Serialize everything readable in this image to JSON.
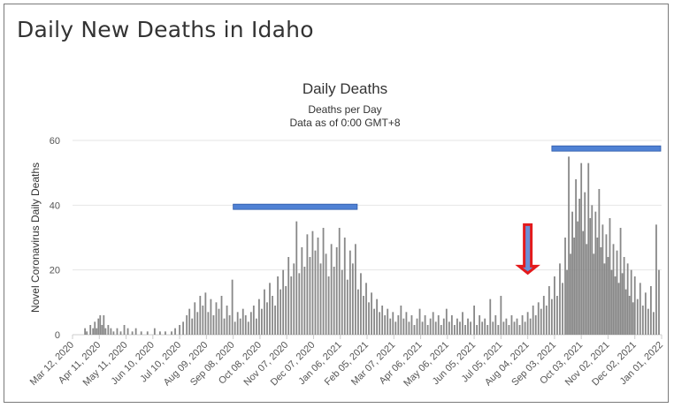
{
  "page": {
    "title": "Daily New Deaths in Idaho"
  },
  "chart_data": {
    "type": "bar",
    "title": "Daily Deaths",
    "subtitle_lines": [
      "Deaths per Day",
      "Data as of 0:00 GMT+8"
    ],
    "xlabel": "",
    "ylabel": "Novel Coronavirus Daily Deaths",
    "ylim": [
      0,
      60
    ],
    "yticks": [
      0,
      20,
      40,
      60
    ],
    "x_start": "2020-03-12",
    "x_end": "2022-01-01",
    "xtick_labels": [
      "Mar 12, 2020",
      "Apr 11, 2020",
      "May 11, 2020",
      "Jun 10, 2020",
      "Jul 10, 2020",
      "Aug 09, 2020",
      "Sep 08, 2020",
      "Oct 08, 2020",
      "Nov 07, 2020",
      "Dec 07, 2020",
      "Jan 06, 2021",
      "Feb 05, 2021",
      "Mar 07, 2021",
      "Apr 06, 2021",
      "May 06, 2021",
      "Jun 05, 2021",
      "Jul 05, 2021",
      "Aug 04, 2021",
      "Sep 03, 2021",
      "Oct 03, 2021",
      "Nov 02, 2021",
      "Dec 02, 2021",
      "Jan 01, 2022"
    ],
    "grid": true,
    "bar_color": "#888888",
    "series": [
      {
        "points": [
          [
            "2020-03-26",
            2
          ],
          [
            "2020-03-28",
            1
          ],
          [
            "2020-04-01",
            3
          ],
          [
            "2020-04-04",
            2
          ],
          [
            "2020-04-06",
            4
          ],
          [
            "2020-04-08",
            2
          ],
          [
            "2020-04-10",
            5
          ],
          [
            "2020-04-12",
            6
          ],
          [
            "2020-04-14",
            3
          ],
          [
            "2020-04-16",
            6
          ],
          [
            "2020-04-18",
            2
          ],
          [
            "2020-04-21",
            3
          ],
          [
            "2020-04-24",
            2
          ],
          [
            "2020-04-27",
            1
          ],
          [
            "2020-05-01",
            2
          ],
          [
            "2020-05-05",
            1
          ],
          [
            "2020-05-09",
            3
          ],
          [
            "2020-05-13",
            2
          ],
          [
            "2020-05-18",
            1
          ],
          [
            "2020-05-22",
            2
          ],
          [
            "2020-05-28",
            1
          ],
          [
            "2020-06-04",
            1
          ],
          [
            "2020-06-12",
            2
          ],
          [
            "2020-06-18",
            1
          ],
          [
            "2020-06-24",
            1
          ],
          [
            "2020-07-01",
            1
          ],
          [
            "2020-07-05",
            2
          ],
          [
            "2020-07-10",
            3
          ],
          [
            "2020-07-14",
            4
          ],
          [
            "2020-07-18",
            6
          ],
          [
            "2020-07-21",
            8
          ],
          [
            "2020-07-24",
            5
          ],
          [
            "2020-07-27",
            10
          ],
          [
            "2020-07-30",
            7
          ],
          [
            "2020-08-02",
            12
          ],
          [
            "2020-08-05",
            9
          ],
          [
            "2020-08-08",
            13
          ],
          [
            "2020-08-11",
            7
          ],
          [
            "2020-08-14",
            11
          ],
          [
            "2020-08-17",
            6
          ],
          [
            "2020-08-20",
            10
          ],
          [
            "2020-08-23",
            8
          ],
          [
            "2020-08-26",
            12
          ],
          [
            "2020-08-29",
            5
          ],
          [
            "2020-09-01",
            9
          ],
          [
            "2020-09-04",
            6
          ],
          [
            "2020-09-07",
            17
          ],
          [
            "2020-09-10",
            4
          ],
          [
            "2020-09-13",
            7
          ],
          [
            "2020-09-16",
            5
          ],
          [
            "2020-09-19",
            8
          ],
          [
            "2020-09-22",
            6
          ],
          [
            "2020-09-25",
            4
          ],
          [
            "2020-09-28",
            7
          ],
          [
            "2020-10-01",
            9
          ],
          [
            "2020-10-04",
            5
          ],
          [
            "2020-10-07",
            11
          ],
          [
            "2020-10-10",
            8
          ],
          [
            "2020-10-13",
            14
          ],
          [
            "2020-10-16",
            10
          ],
          [
            "2020-10-19",
            16
          ],
          [
            "2020-10-22",
            12
          ],
          [
            "2020-10-25",
            9
          ],
          [
            "2020-10-28",
            18
          ],
          [
            "2020-10-31",
            14
          ],
          [
            "2020-11-03",
            20
          ],
          [
            "2020-11-06",
            15
          ],
          [
            "2020-11-09",
            24
          ],
          [
            "2020-11-12",
            18
          ],
          [
            "2020-11-15",
            22
          ],
          [
            "2020-11-18",
            35
          ],
          [
            "2020-11-21",
            19
          ],
          [
            "2020-11-24",
            27
          ],
          [
            "2020-11-27",
            21
          ],
          [
            "2020-11-30",
            31
          ],
          [
            "2020-12-03",
            24
          ],
          [
            "2020-12-06",
            32
          ],
          [
            "2020-12-09",
            26
          ],
          [
            "2020-12-12",
            30
          ],
          [
            "2020-12-15",
            22
          ],
          [
            "2020-12-18",
            33
          ],
          [
            "2020-12-21",
            25
          ],
          [
            "2020-12-24",
            18
          ],
          [
            "2020-12-27",
            28
          ],
          [
            "2020-12-30",
            21
          ],
          [
            "2021-01-02",
            27
          ],
          [
            "2021-01-05",
            33
          ],
          [
            "2021-01-08",
            20
          ],
          [
            "2021-01-11",
            30
          ],
          [
            "2021-01-14",
            17
          ],
          [
            "2021-01-17",
            26
          ],
          [
            "2021-01-20",
            22
          ],
          [
            "2021-01-23",
            28
          ],
          [
            "2021-01-26",
            14
          ],
          [
            "2021-01-29",
            19
          ],
          [
            "2021-02-01",
            12
          ],
          [
            "2021-02-04",
            16
          ],
          [
            "2021-02-07",
            10
          ],
          [
            "2021-02-10",
            13
          ],
          [
            "2021-02-13",
            8
          ],
          [
            "2021-02-16",
            11
          ],
          [
            "2021-02-19",
            7
          ],
          [
            "2021-02-22",
            9
          ],
          [
            "2021-02-25",
            6
          ],
          [
            "2021-02-28",
            8
          ],
          [
            "2021-03-03",
            5
          ],
          [
            "2021-03-06",
            7
          ],
          [
            "2021-03-09",
            4
          ],
          [
            "2021-03-12",
            6
          ],
          [
            "2021-03-15",
            9
          ],
          [
            "2021-03-18",
            5
          ],
          [
            "2021-03-21",
            7
          ],
          [
            "2021-03-24",
            4
          ],
          [
            "2021-03-27",
            6
          ],
          [
            "2021-03-30",
            3
          ],
          [
            "2021-04-02",
            5
          ],
          [
            "2021-04-05",
            8
          ],
          [
            "2021-04-08",
            4
          ],
          [
            "2021-04-11",
            6
          ],
          [
            "2021-04-14",
            3
          ],
          [
            "2021-04-17",
            5
          ],
          [
            "2021-04-20",
            7
          ],
          [
            "2021-04-23",
            4
          ],
          [
            "2021-04-26",
            6
          ],
          [
            "2021-04-29",
            3
          ],
          [
            "2021-05-02",
            5
          ],
          [
            "2021-05-05",
            8
          ],
          [
            "2021-05-08",
            4
          ],
          [
            "2021-05-11",
            6
          ],
          [
            "2021-05-14",
            3
          ],
          [
            "2021-05-17",
            5
          ],
          [
            "2021-05-20",
            4
          ],
          [
            "2021-05-23",
            7
          ],
          [
            "2021-05-26",
            3
          ],
          [
            "2021-05-29",
            5
          ],
          [
            "2021-06-01",
            4
          ],
          [
            "2021-06-05",
            9
          ],
          [
            "2021-06-08",
            3
          ],
          [
            "2021-06-11",
            6
          ],
          [
            "2021-06-14",
            4
          ],
          [
            "2021-06-17",
            5
          ],
          [
            "2021-06-20",
            3
          ],
          [
            "2021-06-23",
            11
          ],
          [
            "2021-06-26",
            4
          ],
          [
            "2021-06-29",
            6
          ],
          [
            "2021-07-02",
            3
          ],
          [
            "2021-07-05",
            12
          ],
          [
            "2021-07-08",
            4
          ],
          [
            "2021-07-11",
            5
          ],
          [
            "2021-07-14",
            3
          ],
          [
            "2021-07-17",
            6
          ],
          [
            "2021-07-20",
            4
          ],
          [
            "2021-07-23",
            5
          ],
          [
            "2021-07-26",
            3
          ],
          [
            "2021-07-29",
            6
          ],
          [
            "2021-08-01",
            4
          ],
          [
            "2021-08-04",
            7
          ],
          [
            "2021-08-07",
            5
          ],
          [
            "2021-08-10",
            9
          ],
          [
            "2021-08-13",
            6
          ],
          [
            "2021-08-16",
            10
          ],
          [
            "2021-08-19",
            8
          ],
          [
            "2021-08-22",
            12
          ],
          [
            "2021-08-25",
            9
          ],
          [
            "2021-08-28",
            15
          ],
          [
            "2021-08-31",
            11
          ],
          [
            "2021-09-03",
            18
          ],
          [
            "2021-09-06",
            12
          ],
          [
            "2021-09-09",
            22
          ],
          [
            "2021-09-12",
            16
          ],
          [
            "2021-09-15",
            30
          ],
          [
            "2021-09-17",
            20
          ],
          [
            "2021-09-19",
            55
          ],
          [
            "2021-09-21",
            25
          ],
          [
            "2021-09-23",
            38
          ],
          [
            "2021-09-25",
            30
          ],
          [
            "2021-09-27",
            48
          ],
          [
            "2021-09-29",
            35
          ],
          [
            "2021-10-01",
            42
          ],
          [
            "2021-10-03",
            53
          ],
          [
            "2021-10-05",
            32
          ],
          [
            "2021-10-07",
            44
          ],
          [
            "2021-10-09",
            28
          ],
          [
            "2021-10-11",
            53
          ],
          [
            "2021-10-13",
            36
          ],
          [
            "2021-10-15",
            40
          ],
          [
            "2021-10-17",
            25
          ],
          [
            "2021-10-19",
            38
          ],
          [
            "2021-10-21",
            30
          ],
          [
            "2021-10-23",
            45
          ],
          [
            "2021-10-25",
            27
          ],
          [
            "2021-10-27",
            34
          ],
          [
            "2021-10-29",
            22
          ],
          [
            "2021-10-31",
            31
          ],
          [
            "2021-11-02",
            24
          ],
          [
            "2021-11-04",
            36
          ],
          [
            "2021-11-06",
            20
          ],
          [
            "2021-11-08",
            28
          ],
          [
            "2021-11-10",
            18
          ],
          [
            "2021-11-12",
            26
          ],
          [
            "2021-11-14",
            16
          ],
          [
            "2021-11-16",
            33
          ],
          [
            "2021-11-18",
            19
          ],
          [
            "2021-11-20",
            24
          ],
          [
            "2021-11-22",
            14
          ],
          [
            "2021-11-24",
            22
          ],
          [
            "2021-11-26",
            12
          ],
          [
            "2021-11-28",
            20
          ],
          [
            "2021-11-30",
            10
          ],
          [
            "2021-12-02",
            18
          ],
          [
            "2021-12-05",
            11
          ],
          [
            "2021-12-08",
            16
          ],
          [
            "2021-12-11",
            9
          ],
          [
            "2021-12-14",
            13
          ],
          [
            "2021-12-17",
            8
          ],
          [
            "2021-12-20",
            15
          ],
          [
            "2021-12-23",
            7
          ],
          [
            "2021-12-26",
            34
          ],
          [
            "2021-12-29",
            20
          ]
        ]
      }
    ],
    "annotations": [
      {
        "kind": "horizontal-bar",
        "color": "#4f81d4",
        "from": "2020-09-08",
        "to": "2021-01-25",
        "y": 39.5
      },
      {
        "kind": "horizontal-bar",
        "color": "#4f81d4",
        "from": "2021-08-31",
        "to": "2021-12-31",
        "y": 57.5
      },
      {
        "kind": "down-arrow",
        "color": "#e41a1c",
        "fill": "#6b8fd6",
        "date": "2021-08-04",
        "y_top": 34,
        "y_bottom": 19
      }
    ]
  }
}
